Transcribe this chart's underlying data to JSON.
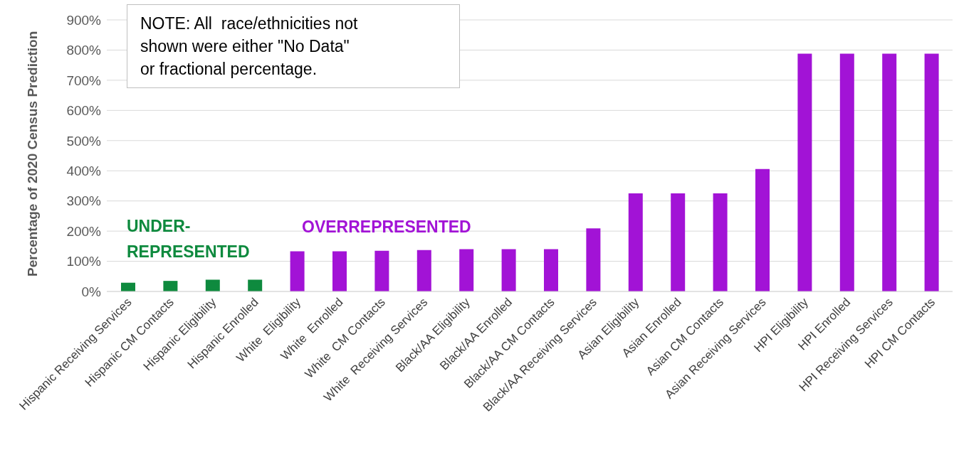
{
  "chart_data": {
    "type": "bar",
    "ylabel": "Percentage of 2020 Census Prediction",
    "categories": [
      "Hispanic Receiving Services",
      "Hispanic CM Contacts",
      "Hispanic Eligibility",
      "Hispanic Enrolled",
      "White  Eligibility",
      "White  Enrolled",
      "White  CM Contacts",
      "White  Receiving Services",
      "Black/AA Eligibility",
      "Black/AA Enrolled",
      "Black/AA CM Contacts",
      "Black/AA Receiving Services",
      "Asian Eligibility",
      "Asian Enrolled",
      "Asian CM Contacts",
      "Asian Receiving Services",
      "HPI Eligibility",
      "HPI Enrolled",
      "HPI Receiving Services",
      "HPI CM Contacts"
    ],
    "values": [
      29,
      35,
      39,
      39,
      133,
      133,
      135,
      137,
      140,
      140,
      140,
      209,
      325,
      325,
      325,
      406,
      788,
      788,
      788,
      788
    ],
    "colors": [
      "#0e8a3e",
      "#0e8a3e",
      "#0e8a3e",
      "#0e8a3e",
      "#a213d6",
      "#a213d6",
      "#a213d6",
      "#a213d6",
      "#a213d6",
      "#a213d6",
      "#a213d6",
      "#a213d6",
      "#a213d6",
      "#a213d6",
      "#a213d6",
      "#a213d6",
      "#a213d6",
      "#a213d6",
      "#a213d6",
      "#a213d6"
    ],
    "ylim": [
      0,
      900
    ],
    "yticks": [
      {
        "value": 0,
        "label": "0%"
      },
      {
        "value": 100,
        "label": "100%"
      },
      {
        "value": 200,
        "label": "200%"
      },
      {
        "value": 300,
        "label": "300%"
      },
      {
        "value": 400,
        "label": "400%"
      },
      {
        "value": 500,
        "label": "500%"
      },
      {
        "value": 600,
        "label": "600%"
      },
      {
        "value": 700,
        "label": "700%"
      },
      {
        "value": 800,
        "label": "800%"
      },
      {
        "value": 900,
        "label": "900%"
      }
    ],
    "grid": "y",
    "annotations": [
      "NOTE: All  race/ethnicities not\nshown were either \"No Data\"\nor fractional percentage.",
      "UNDER-\nREPRESENTED",
      "OVERREPRESENTED"
    ]
  }
}
